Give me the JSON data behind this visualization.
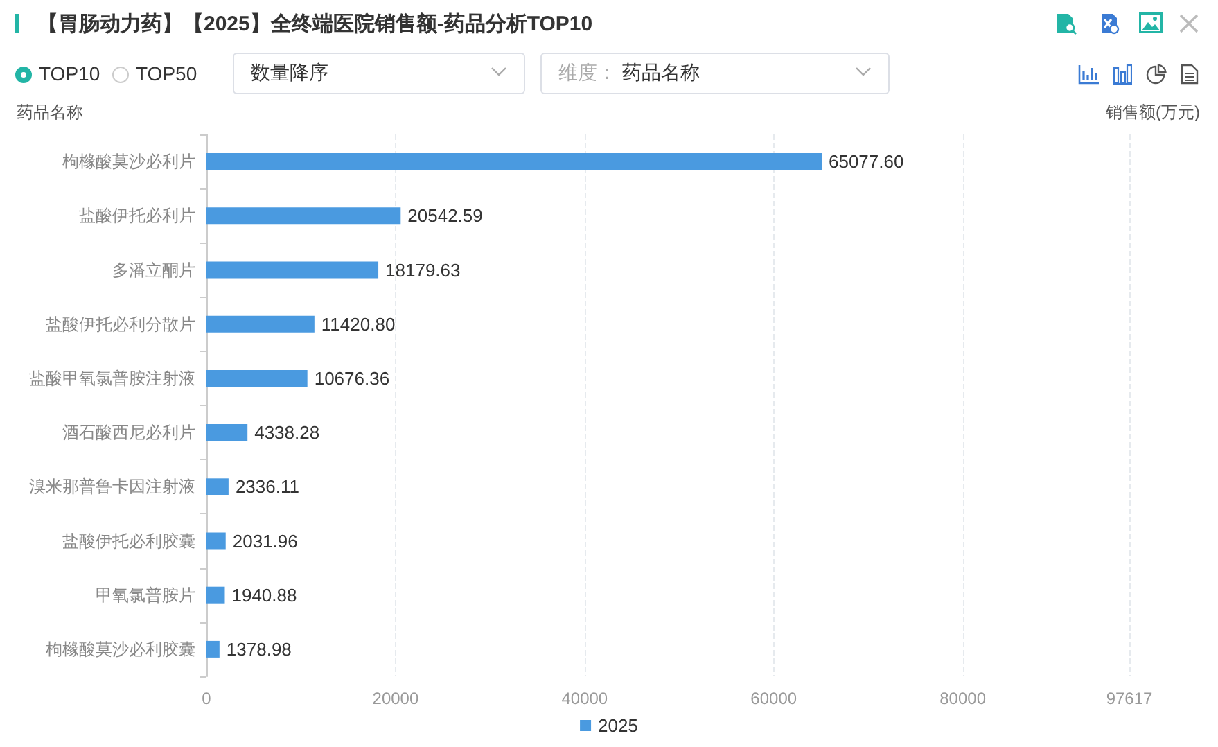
{
  "chart_data": {
    "type": "bar",
    "orientation": "horizontal",
    "title": "【胃肠动力药】【2025】全终端医院销售额-药品分析TOP10",
    "ylabel": "药品名称",
    "xlabel": "销售额(万元)",
    "annotations": [
      "TOP10",
      "TOP50",
      "数量降序",
      "维度：",
      "药品名称"
    ],
    "categories": [
      "枸橼酸莫沙必利片",
      "盐酸伊托必利片",
      "多潘立酮片",
      "盐酸伊托必利分散片",
      "盐酸甲氧氯普胺注射液",
      "酒石酸西尼必利片",
      "溴米那普鲁卡因注射液",
      "盐酸伊托必利胶囊",
      "甲氧氯普胺片",
      "枸橼酸莫沙必利胶囊"
    ],
    "series": [
      {
        "name": "2025",
        "color": "#4a9ae0",
        "values": [
          65077.6,
          20542.59,
          18179.63,
          11420.8,
          10676.36,
          4338.28,
          2336.11,
          2031.96,
          1940.88,
          1378.98
        ],
        "value_labels": [
          "65077.60",
          "20542.59",
          "18179.63",
          "11420.80",
          "10676.36",
          "4338.28",
          "2336.11",
          "2031.96",
          "1940.88",
          "1378.98"
        ]
      }
    ],
    "xlim": [
      0,
      97617
    ],
    "xticks": [
      0,
      20000,
      40000,
      60000,
      80000,
      97617
    ],
    "grid": "x",
    "legend": "bottom"
  }
}
